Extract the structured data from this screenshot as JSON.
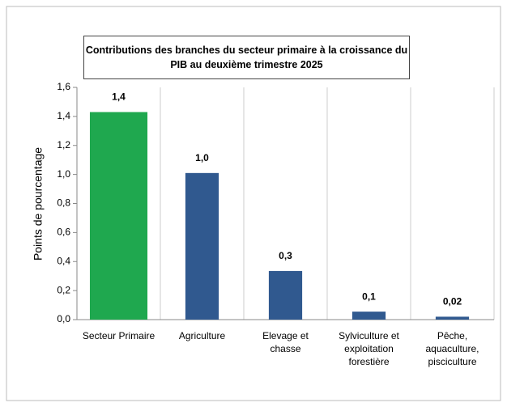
{
  "chart_data": {
    "type": "bar",
    "title": "Contributions des branches du secteur primaire à la croissance du PIB au deuxième trimestre 2025",
    "y_label": "Points de pourcentage",
    "categories": [
      "Secteur Primaire",
      "Agriculture",
      "Elevage et chasse",
      "Sylviculture et exploitation forestière",
      "Pêche, aquaculture, pisciculture"
    ],
    "values": [
      1.43,
      1.01,
      0.335,
      0.055,
      0.02
    ],
    "value_labels": [
      "1,4",
      "1,0",
      "0,3",
      "0,1",
      "0,02"
    ],
    "colors": [
      "#1fa84f",
      "#30598f",
      "#30598f",
      "#30598f",
      "#30598f"
    ],
    "ylim": [
      0,
      1.6
    ],
    "yticks": [
      {
        "value": 0,
        "label": "0,0"
      },
      {
        "value": 0.2,
        "label": "0,2"
      },
      {
        "value": 0.4,
        "label": "0,4"
      },
      {
        "value": 0.6,
        "label": "0,6"
      },
      {
        "value": 0.8,
        "label": "0,8"
      },
      {
        "value": 1.0,
        "label": "1,0"
      },
      {
        "value": 1.2,
        "label": "1,2"
      },
      {
        "value": 1.4,
        "label": "1,4"
      },
      {
        "value": 1.6,
        "label": "1,6"
      }
    ]
  }
}
